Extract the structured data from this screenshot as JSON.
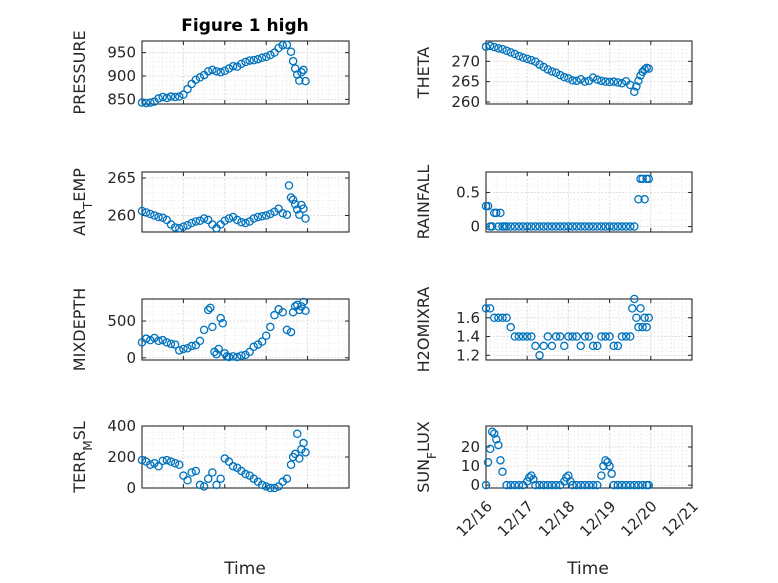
{
  "figure_title": "Figure 1 high",
  "x_axis_label": "Time",
  "x_tick_labels": [
    "12/16",
    "12/17",
    "12/18",
    "12/19",
    "12/20",
    "12/21"
  ],
  "colors": {
    "marker": "#0072BD",
    "axes": "#262626",
    "grid": "#dcdcdc"
  },
  "chart_data": [
    {
      "type": "scatter",
      "title": "Figure 1 high",
      "ylabel": "PRESSURE",
      "ylim": [
        840,
        975
      ],
      "yticks": [
        850,
        900,
        950
      ],
      "xlim": [
        0,
        5
      ],
      "x_tick_labels": [],
      "x": [
        0.0,
        0.1,
        0.2,
        0.3,
        0.4,
        0.5,
        0.6,
        0.7,
        0.8,
        0.9,
        1.0,
        1.1,
        1.2,
        1.3,
        1.4,
        1.5,
        1.6,
        1.7,
        1.8,
        1.9,
        2.0,
        2.1,
        2.2,
        2.3,
        2.4,
        2.5,
        2.6,
        2.7,
        2.8,
        2.9,
        3.0,
        3.1,
        3.2,
        3.3,
        3.4,
        3.5,
        3.6,
        3.65,
        3.7,
        3.75,
        3.8,
        3.85,
        3.9,
        3.95
      ],
      "y": [
        843,
        842,
        843,
        845,
        852,
        855,
        853,
        856,
        855,
        856,
        860,
        872,
        883,
        892,
        897,
        902,
        910,
        913,
        910,
        908,
        911,
        916,
        921,
        920,
        926,
        930,
        933,
        934,
        936,
        939,
        941,
        945,
        950,
        960,
        966,
        967,
        952,
        932,
        916,
        903,
        890,
        908,
        913,
        889
      ]
    },
    {
      "type": "scatter",
      "ylabel": "THETA",
      "ylim": [
        259.5,
        275
      ],
      "yticks": [
        260,
        265,
        270
      ],
      "xlim": [
        0,
        5
      ],
      "x_tick_labels": [],
      "x": [
        0.0,
        0.1,
        0.2,
        0.3,
        0.4,
        0.5,
        0.6,
        0.7,
        0.8,
        0.9,
        1.0,
        1.1,
        1.2,
        1.3,
        1.4,
        1.5,
        1.6,
        1.7,
        1.8,
        1.9,
        2.0,
        2.1,
        2.2,
        2.3,
        2.4,
        2.5,
        2.6,
        2.7,
        2.8,
        2.9,
        3.0,
        3.1,
        3.2,
        3.3,
        3.4,
        3.5,
        3.6,
        3.65,
        3.7,
        3.75,
        3.8,
        3.85,
        3.9,
        3.95
      ],
      "y": [
        273.6,
        273.8,
        273.5,
        273.2,
        273.0,
        272.6,
        272.2,
        271.8,
        271.3,
        270.9,
        270.6,
        270.3,
        269.9,
        269.2,
        268.6,
        268.0,
        267.5,
        267.2,
        266.6,
        266.1,
        265.8,
        265.3,
        265.2,
        265.6,
        265.0,
        265.2,
        266.0,
        265.5,
        265.2,
        265.0,
        264.9,
        265.0,
        264.8,
        264.6,
        265.1,
        264.2,
        262.5,
        263.8,
        265.2,
        266.5,
        267.4,
        268.0,
        268.4,
        268.2
      ]
    },
    {
      "type": "scatter",
      "ylabel": "AIR_TEMP",
      "ylim": [
        257.8,
        265.8
      ],
      "yticks": [
        260,
        265
      ],
      "xlim": [
        0,
        5
      ],
      "x_tick_labels": [],
      "x": [
        0.0,
        0.1,
        0.2,
        0.3,
        0.4,
        0.5,
        0.6,
        0.7,
        0.8,
        0.9,
        1.0,
        1.1,
        1.2,
        1.3,
        1.4,
        1.5,
        1.6,
        1.7,
        1.8,
        1.9,
        2.0,
        2.1,
        2.2,
        2.3,
        2.4,
        2.5,
        2.6,
        2.7,
        2.8,
        2.9,
        3.0,
        3.1,
        3.2,
        3.3,
        3.4,
        3.5,
        3.55,
        3.6,
        3.65,
        3.7,
        3.75,
        3.8,
        3.85,
        3.9,
        3.95
      ],
      "y": [
        260.6,
        260.4,
        260.2,
        260.0,
        259.8,
        259.7,
        259.4,
        258.8,
        258.4,
        258.3,
        258.5,
        258.7,
        259.0,
        259.2,
        259.3,
        259.6,
        259.4,
        258.8,
        258.3,
        258.8,
        259.3,
        259.6,
        259.8,
        259.4,
        259.1,
        259.0,
        259.2,
        259.6,
        259.8,
        259.9,
        260.0,
        260.2,
        260.5,
        260.9,
        260.3,
        260.1,
        264.0,
        262.4,
        262.1,
        261.5,
        260.8,
        260.1,
        261.4,
        260.9,
        259.6
      ]
    },
    {
      "type": "scatter",
      "ylabel": "RAINFALL",
      "ylim": [
        -0.08,
        0.8
      ],
      "yticks": [
        0,
        0.5
      ],
      "xlim": [
        0,
        5
      ],
      "x_tick_labels": [],
      "x": [
        0.0,
        0.05,
        0.1,
        0.15,
        0.2,
        0.25,
        0.3,
        0.35,
        0.4,
        0.45,
        0.5,
        0.6,
        0.7,
        0.8,
        0.9,
        1.0,
        1.1,
        1.2,
        1.3,
        1.4,
        1.5,
        1.6,
        1.7,
        1.8,
        1.9,
        2.0,
        2.1,
        2.2,
        2.3,
        2.4,
        2.5,
        2.6,
        2.7,
        2.8,
        2.9,
        3.0,
        3.1,
        3.2,
        3.3,
        3.4,
        3.5,
        3.6,
        3.7,
        3.75,
        3.8,
        3.85,
        3.9,
        3.95
      ],
      "y": [
        0.3,
        0.3,
        0.0,
        0.0,
        0.2,
        0.2,
        0.0,
        0.2,
        0.0,
        0.0,
        0.0,
        0.0,
        0.0,
        0.0,
        0.0,
        0.0,
        0.0,
        0.0,
        0.0,
        0.0,
        0.0,
        0.0,
        0.0,
        0.0,
        0.0,
        0.0,
        0.0,
        0.0,
        0.0,
        0.0,
        0.0,
        0.0,
        0.0,
        0.0,
        0.0,
        0.0,
        0.0,
        0.0,
        0.0,
        0.0,
        0.0,
        0.0,
        0.4,
        0.7,
        0.7,
        0.4,
        0.7,
        0.7
      ]
    },
    {
      "type": "scatter",
      "ylabel": "MIXDEPTH",
      "ylim": [
        -30,
        800
      ],
      "yticks": [
        0,
        500
      ],
      "xlim": [
        0,
        5
      ],
      "x_tick_labels": [],
      "x": [
        0.0,
        0.1,
        0.2,
        0.3,
        0.4,
        0.5,
        0.6,
        0.7,
        0.8,
        0.9,
        1.0,
        1.1,
        1.2,
        1.3,
        1.4,
        1.5,
        1.6,
        1.65,
        1.7,
        1.75,
        1.8,
        1.85,
        1.9,
        1.95,
        2.0,
        2.05,
        2.1,
        2.2,
        2.3,
        2.4,
        2.5,
        2.6,
        2.7,
        2.8,
        2.9,
        3.0,
        3.1,
        3.2,
        3.3,
        3.4,
        3.5,
        3.6,
        3.65,
        3.7,
        3.75,
        3.8,
        3.85,
        3.9,
        3.95
      ],
      "y": [
        210,
        260,
        240,
        270,
        230,
        240,
        210,
        190,
        180,
        100,
        120,
        130,
        160,
        170,
        230,
        380,
        650,
        680,
        420,
        80,
        50,
        120,
        540,
        470,
        60,
        20,
        10,
        20,
        10,
        30,
        40,
        80,
        150,
        180,
        220,
        300,
        420,
        580,
        660,
        620,
        380,
        350,
        620,
        700,
        720,
        650,
        700,
        760,
        640
      ]
    },
    {
      "type": "scatter",
      "ylabel": "H2OMIXRA",
      "ylim": [
        1.15,
        1.8
      ],
      "yticks": [
        1.2,
        1.4,
        1.6
      ],
      "xlim": [
        0,
        5
      ],
      "x_tick_labels": [],
      "x": [
        0.0,
        0.1,
        0.2,
        0.3,
        0.4,
        0.5,
        0.6,
        0.7,
        0.8,
        0.9,
        1.0,
        1.1,
        1.2,
        1.3,
        1.4,
        1.5,
        1.6,
        1.7,
        1.8,
        1.9,
        2.0,
        2.1,
        2.2,
        2.3,
        2.4,
        2.5,
        2.6,
        2.7,
        2.8,
        2.9,
        3.0,
        3.1,
        3.2,
        3.3,
        3.4,
        3.5,
        3.55,
        3.6,
        3.65,
        3.7,
        3.75,
        3.8,
        3.85,
        3.9,
        3.95
      ],
      "y": [
        1.7,
        1.7,
        1.6,
        1.6,
        1.6,
        1.6,
        1.5,
        1.4,
        1.4,
        1.4,
        1.4,
        1.4,
        1.3,
        1.2,
        1.3,
        1.4,
        1.3,
        1.4,
        1.4,
        1.3,
        1.4,
        1.4,
        1.4,
        1.3,
        1.4,
        1.4,
        1.3,
        1.3,
        1.4,
        1.4,
        1.4,
        1.3,
        1.3,
        1.4,
        1.4,
        1.4,
        1.7,
        1.8,
        1.6,
        1.5,
        1.7,
        1.5,
        1.6,
        1.5,
        1.6
      ]
    },
    {
      "type": "scatter",
      "ylabel": "TERR_MSL",
      "ylim": [
        0,
        400
      ],
      "yticks": [
        0,
        200,
        400
      ],
      "xlim": [
        0,
        5
      ],
      "x_tick_labels": [],
      "x": [
        0.0,
        0.1,
        0.2,
        0.3,
        0.4,
        0.5,
        0.6,
        0.7,
        0.8,
        0.9,
        1.0,
        1.1,
        1.2,
        1.3,
        1.4,
        1.5,
        1.6,
        1.7,
        1.8,
        1.9,
        2.0,
        2.1,
        2.2,
        2.3,
        2.4,
        2.5,
        2.6,
        2.7,
        2.8,
        2.9,
        3.0,
        3.1,
        3.2,
        3.3,
        3.4,
        3.5,
        3.6,
        3.65,
        3.7,
        3.75,
        3.8,
        3.85,
        3.9,
        3.95
      ],
      "y": [
        180,
        170,
        150,
        160,
        140,
        175,
        180,
        170,
        160,
        150,
        80,
        50,
        100,
        110,
        20,
        10,
        60,
        100,
        20,
        60,
        190,
        170,
        140,
        130,
        110,
        90,
        80,
        60,
        40,
        20,
        10,
        0,
        0,
        10,
        40,
        60,
        150,
        200,
        220,
        350,
        190,
        250,
        290,
        230
      ]
    },
    {
      "type": "scatter",
      "ylabel": "SUN_FLUX",
      "ylim": [
        -1.5,
        31
      ],
      "yticks": [
        0,
        10,
        20
      ],
      "xlim": [
        0,
        5
      ],
      "x_tick_labels": [
        "12/16",
        "12/17",
        "12/18",
        "12/19",
        "12/20",
        "12/21"
      ],
      "x": [
        0.0,
        0.05,
        0.1,
        0.15,
        0.2,
        0.25,
        0.3,
        0.35,
        0.4,
        0.5,
        0.6,
        0.7,
        0.8,
        0.9,
        1.0,
        1.05,
        1.1,
        1.15,
        1.2,
        1.3,
        1.4,
        1.5,
        1.6,
        1.7,
        1.8,
        1.9,
        1.95,
        2.0,
        2.05,
        2.1,
        2.2,
        2.3,
        2.4,
        2.5,
        2.6,
        2.7,
        2.8,
        2.85,
        2.9,
        2.95,
        3.0,
        3.05,
        3.1,
        3.2,
        3.3,
        3.4,
        3.5,
        3.6,
        3.7,
        3.8,
        3.9,
        3.95
      ],
      "y": [
        0,
        12,
        19,
        28,
        27,
        24,
        21,
        13,
        7,
        0,
        0,
        0,
        0,
        0,
        2,
        4,
        5,
        3,
        0,
        0,
        0,
        0,
        0,
        0,
        0,
        2,
        4,
        5,
        2,
        0,
        0,
        0,
        0,
        0,
        0,
        0,
        5,
        10,
        13,
        12,
        10,
        6,
        0,
        0,
        0,
        0,
        0,
        0,
        0,
        0,
        0,
        0
      ]
    }
  ]
}
